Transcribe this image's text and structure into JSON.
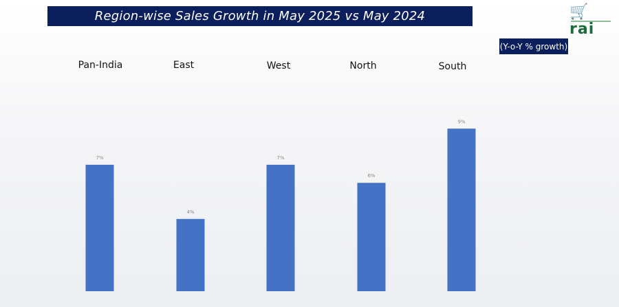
{
  "header": {
    "title": "Region-wise Sales Growth in May 2025 vs May 2024",
    "unit_badge": "(Y-o-Y % growth)"
  },
  "logo": {
    "text": "rai",
    "icon": "shopping-cart-icon",
    "color": "#1d6b3a"
  },
  "colors": {
    "banner": "#0b1f5c",
    "bar": "#4472c4"
  },
  "chart_data": {
    "type": "bar",
    "title": "Region-wise Sales Growth in May 2025 vs May 2024",
    "categories": [
      "Pan-India",
      "East",
      "West",
      "North",
      "South"
    ],
    "values": [
      7,
      4,
      7,
      6,
      9
    ],
    "value_labels": [
      "7%",
      "4%",
      "7%",
      "6%",
      "9%"
    ],
    "unit": "(Y-o-Y % growth)",
    "ylim": [
      0,
      9
    ],
    "grid": false,
    "legend": "none"
  }
}
